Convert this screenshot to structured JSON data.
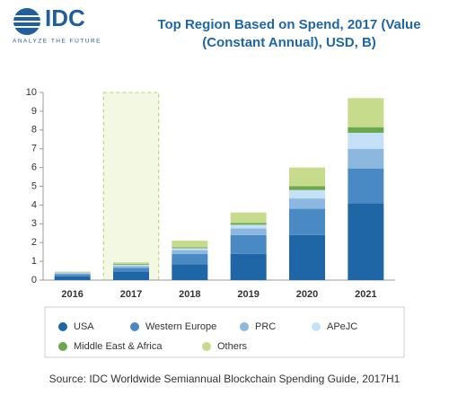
{
  "logo": {
    "name": "IDC",
    "tagline": "ANALYZE THE FUTURE"
  },
  "chart_data": {
    "type": "stacked_bar",
    "title": [
      "Top Region Based on Spend, 2017 (Value",
      "(Constant Annual), USD, B)"
    ],
    "categories": [
      "2016",
      "2017",
      "2018",
      "2019",
      "2020",
      "2021"
    ],
    "highlight": "2017",
    "series": [
      {
        "name": "USA",
        "color": "#1f66a6",
        "values": [
          0.2,
          0.45,
          0.85,
          1.4,
          2.4,
          4.1
        ]
      },
      {
        "name": "Western Europe",
        "color": "#4a8ac4",
        "values": [
          0.12,
          0.2,
          0.55,
          1.0,
          1.4,
          1.85
        ]
      },
      {
        "name": "PRC",
        "color": "#8cb8e0",
        "values": [
          0.05,
          0.1,
          0.2,
          0.35,
          0.55,
          1.05
        ]
      },
      {
        "name": "APeJC",
        "color": "#c5e1f7",
        "values": [
          0.03,
          0.07,
          0.1,
          0.2,
          0.45,
          0.85
        ]
      },
      {
        "name": "Middle East & Africa",
        "color": "#6aa84f",
        "values": [
          0.02,
          0.04,
          0.05,
          0.1,
          0.2,
          0.3
        ]
      },
      {
        "name": "Others",
        "color": "#c6dc8c",
        "values": [
          0.03,
          0.09,
          0.35,
          0.55,
          1.0,
          1.55
        ]
      }
    ],
    "ylim": [
      0,
      10
    ],
    "yticks": [
      0,
      1,
      2,
      3,
      4,
      5,
      6,
      7,
      8,
      9,
      10
    ],
    "grid": false,
    "source": "Source: IDC Worldwide Semiannual Blockchain Spending Guide, 2017H1"
  }
}
